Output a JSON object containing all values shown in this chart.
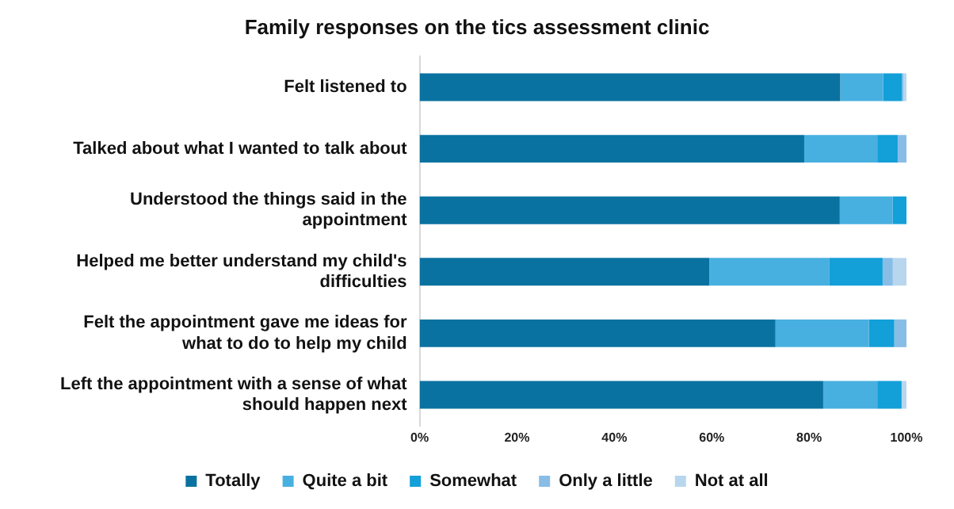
{
  "chart_data": {
    "type": "bar",
    "orientation": "horizontal",
    "stacked": true,
    "title": "Family responses on the tics assessment clinic",
    "categories": [
      "Felt listened to",
      "Talked about what I wanted to talk about",
      "Understood the things said in the appointment",
      "Helped me better understand my child's difficulties",
      "Felt the appointment gave me ideas for what to do to help my child",
      "Left the appointment with a sense of what should happen next"
    ],
    "series": [
      {
        "name": "Totally",
        "color": "#0a72a0",
        "values": [
          86.4,
          79,
          86.3,
          59.5,
          73.1,
          82.9
        ]
      },
      {
        "name": "Quite a bit",
        "color": "#48b0e0",
        "values": [
          8.8,
          15,
          10.9,
          24.7,
          19.2,
          11.1
        ]
      },
      {
        "name": "Somewhat",
        "color": "#139fd8",
        "values": [
          3.9,
          4.2,
          2.8,
          10.9,
          5.2,
          5
        ]
      },
      {
        "name": "Only a little",
        "color": "#88bde6",
        "values": [
          0.3,
          1.8,
          0,
          2.1,
          2.5,
          0
        ]
      },
      {
        "name": "Not at all",
        "color": "#b8d6ee",
        "values": [
          0.6,
          0,
          0,
          2.8,
          0,
          1
        ]
      }
    ],
    "xlim": [
      0,
      100
    ],
    "xticks": [
      {
        "value": 0,
        "label": "0%"
      },
      {
        "value": 20,
        "label": "20%"
      },
      {
        "value": 40,
        "label": "40%"
      },
      {
        "value": 60,
        "label": "60%"
      },
      {
        "value": 80,
        "label": "80%"
      },
      {
        "value": 100,
        "label": "100%"
      }
    ],
    "grid": false,
    "legend": "bottom"
  }
}
